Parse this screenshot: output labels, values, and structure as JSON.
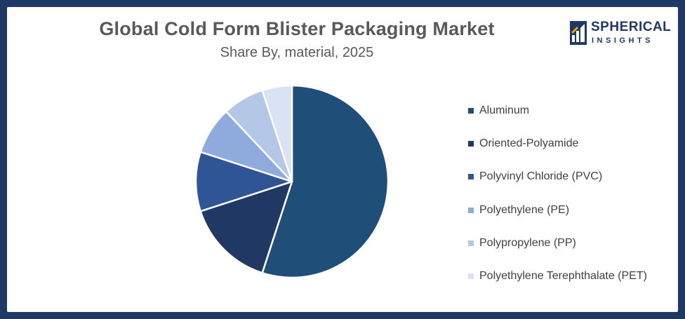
{
  "chart_data": {
    "type": "pie",
    "title": "Global Cold Form Blister Packaging Market",
    "subtitle": "Share By, material, 2025",
    "legend_position": "right",
    "slices": [
      {
        "label": "Aluminum",
        "value": 55,
        "color": "#1f4e79"
      },
      {
        "label": "Oriented-Polyamide",
        "value": 15,
        "color": "#203864"
      },
      {
        "label": "Polyvinyl Chloride (PVC)",
        "value": 10,
        "color": "#2f5597"
      },
      {
        "label": "Polyethylene (PE)",
        "value": 8,
        "color": "#8faadc"
      },
      {
        "label": "Polypropylene (PP)",
        "value": 7,
        "color": "#b4c7e7"
      },
      {
        "label": "Polyethylene Terephthalate (PET)",
        "value": 5,
        "color": "#dae3f3"
      }
    ]
  },
  "logo": {
    "line1": "SPHERICAL",
    "line2": "INSIGHTS"
  }
}
